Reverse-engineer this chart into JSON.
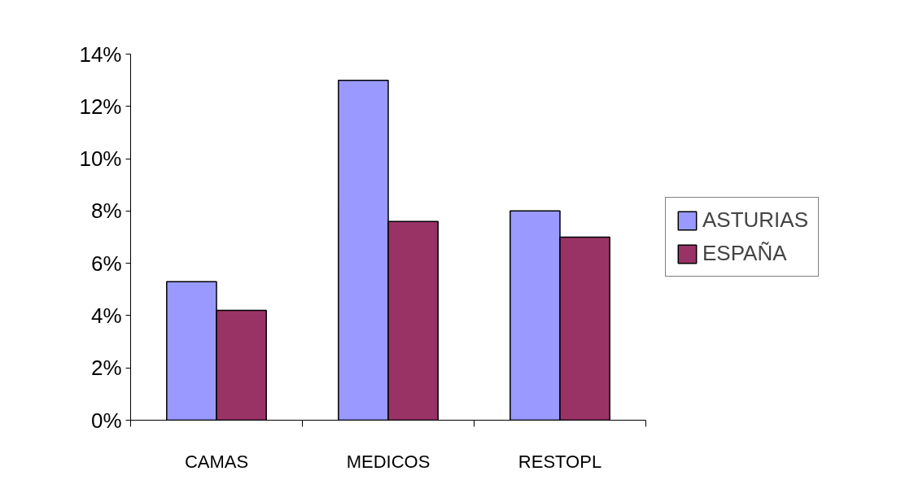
{
  "chart_data": {
    "type": "bar",
    "categories": [
      "CAMAS",
      "MEDICOS",
      "RESTOPL"
    ],
    "series": [
      {
        "name": "ASTURIAS",
        "color": "#9999ff",
        "values": [
          5.3,
          13.0,
          8.0
        ]
      },
      {
        "name": "ESPAÑA",
        "color": "#993366",
        "values": [
          4.2,
          7.6,
          7.0
        ]
      }
    ],
    "ylim": [
      0,
      14
    ],
    "yticks": [
      {
        "value": 0,
        "label": "0%"
      },
      {
        "value": 2,
        "label": "2%"
      },
      {
        "value": 4,
        "label": "4%"
      },
      {
        "value": 6,
        "label": "6%"
      },
      {
        "value": 8,
        "label": "8%"
      },
      {
        "value": 10,
        "label": "10%"
      },
      {
        "value": 12,
        "label": "12%"
      },
      {
        "value": 14,
        "label": "14%"
      }
    ],
    "grid": false,
    "legend": "right"
  }
}
